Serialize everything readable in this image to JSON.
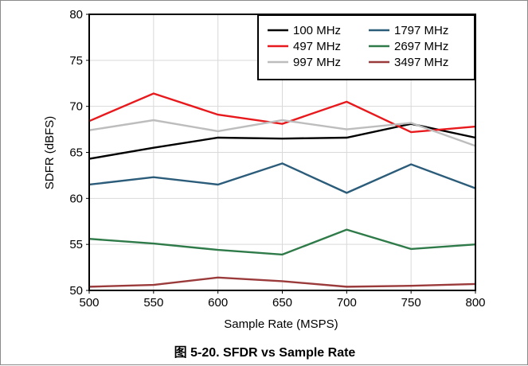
{
  "figure": {
    "caption": "图 5-20. SFDR vs Sample Rate"
  },
  "chart_data": {
    "type": "line",
    "title": "",
    "xlabel": "Sample Rate (MSPS)",
    "ylabel": "SDFR (dBFS)",
    "x": [
      500,
      550,
      600,
      650,
      700,
      750,
      800
    ],
    "xlim": [
      500,
      800
    ],
    "ylim": [
      50,
      80
    ],
    "xticks": [
      "500",
      "550",
      "600",
      "650",
      "700",
      "750",
      "800"
    ],
    "yticks": [
      "50",
      "55",
      "60",
      "65",
      "70",
      "75",
      "80"
    ],
    "grid": true,
    "legend_position": "top-right",
    "series": [
      {
        "name": "100 MHz",
        "color": "#000000",
        "values": [
          64.3,
          65.5,
          66.6,
          66.5,
          66.6,
          68.1,
          66.6
        ]
      },
      {
        "name": "497 MHz",
        "color": "#e8191c",
        "values": [
          68.4,
          71.4,
          69.1,
          68.1,
          70.5,
          67.2,
          67.8
        ]
      },
      {
        "name": "997 MHz",
        "color": "#bdbdbd",
        "values": [
          67.4,
          68.5,
          67.3,
          68.5,
          67.5,
          68.2,
          65.7
        ]
      },
      {
        "name": "1797 MHz",
        "color": "#2b5c7a",
        "values": [
          61.5,
          62.3,
          61.5,
          63.8,
          60.6,
          63.7,
          61.1
        ]
      },
      {
        "name": "2697 MHz",
        "color": "#2e7a48",
        "values": [
          55.6,
          55.1,
          54.4,
          53.9,
          56.6,
          54.5,
          55.0
        ]
      },
      {
        "name": "3497 MHz",
        "color": "#9b3a3a",
        "values": [
          50.4,
          50.6,
          51.4,
          51.0,
          50.4,
          50.5,
          50.7
        ]
      }
    ]
  }
}
